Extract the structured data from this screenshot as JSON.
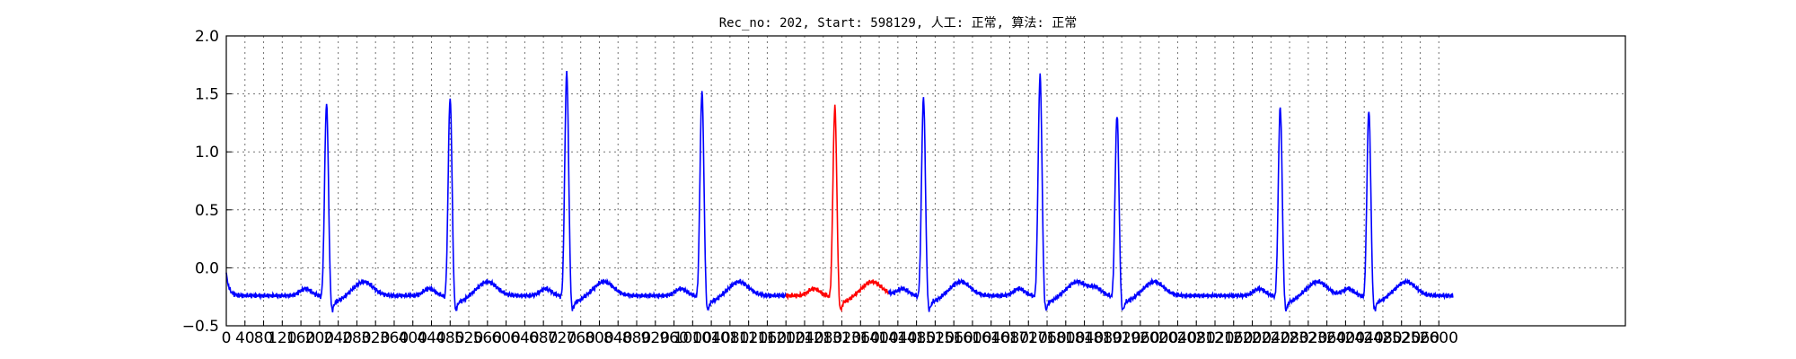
{
  "chart_data": {
    "type": "line",
    "title": "Rec_no: 202, Start: 598129, 人工: 正常, 算法: 正常",
    "xlabel": "",
    "ylabel": "",
    "xlim": [
      0,
      3000
    ],
    "ylim": [
      -0.5,
      2.0
    ],
    "grid": true,
    "yticks": [
      2.0,
      1.5,
      1.0,
      0.5,
      0.0,
      -0.5
    ],
    "ytick_labels": [
      "2.0",
      "1.5",
      "1.0",
      "0.5",
      "0.0",
      "−0.5"
    ],
    "xticks": [
      0,
      40,
      80,
      120,
      160,
      200,
      240,
      280,
      320,
      360,
      400,
      440,
      480,
      520,
      560,
      600,
      640,
      680,
      720,
      760,
      800,
      840,
      880,
      920,
      960,
      1000,
      1040,
      1080,
      1120,
      1160,
      1200,
      1240,
      1280,
      1320,
      1360,
      1400,
      1440,
      1480,
      1520,
      1560,
      1600,
      1640,
      1680,
      1720,
      1760,
      1800,
      1840,
      1880,
      1920,
      1960,
      2000,
      2040,
      2080,
      2120,
      2160,
      2200,
      2240,
      2280,
      2320,
      2360,
      2400,
      2440,
      2480,
      2520,
      2560,
      2600
    ],
    "colors": {
      "normal": "#0000ff",
      "highlight": "#ff0000"
    },
    "beats": [
      215,
      480,
      730,
      1020,
      1305,
      1495,
      1745,
      1910,
      2260,
      2450
    ],
    "peaks": [
      1.46,
      1.51,
      1.73,
      1.56,
      1.43,
      1.51,
      1.7,
      1.36,
      1.43,
      1.4
    ],
    "signal_end": 2630,
    "highlight": {
      "start": 1200,
      "end": 1420,
      "beat_index": 4
    },
    "baseline_start": -0.05
  }
}
